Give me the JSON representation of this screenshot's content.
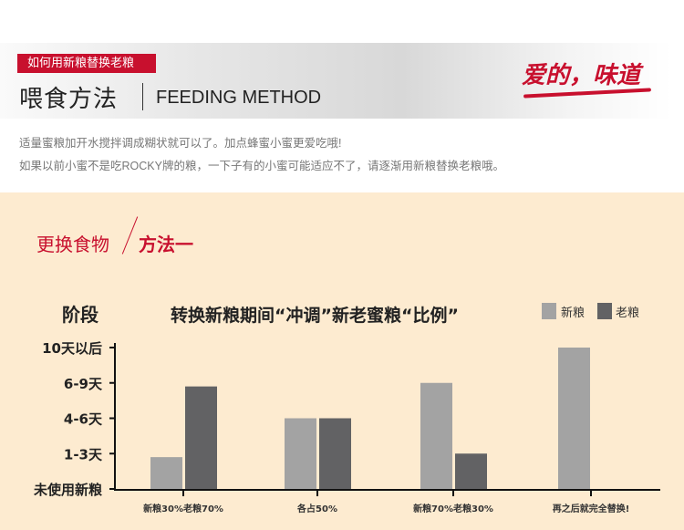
{
  "header": {
    "tag": "如何用新粮替换老粮",
    "title_cn": "喂食方法",
    "title_en": "FEEDING METHOD",
    "logo_text": "爱的，味道",
    "desc_lines": [
      "适量蜜粮加开水搅拌调成糊状就可以了。加点蜂蜜小蜜更爱吃哦!",
      "如果以前小蜜不是吃ROCKY牌的粮，一下子有的小蜜可能适应不了，请逐渐用新粮替换老粮哦。"
    ]
  },
  "section": {
    "title_a": "更换食物",
    "title_b": "方法一"
  },
  "chart_data": {
    "type": "bar",
    "title": "转换新粮期间“冲调”新老蜜粮“比例”",
    "ylabel": "阶段",
    "xlabel": "",
    "y_tick_labels": [
      "未使用新粮",
      "1-3天",
      "4-6天",
      "6-9天",
      "10天以后"
    ],
    "ylim": [
      0,
      4
    ],
    "categories": [
      "新粮30%老粮70%",
      "各占50%",
      "新粮70%老粮30%",
      "再之后就完全替换!"
    ],
    "series": [
      {
        "name": "新粮",
        "color": "#a3a3a3",
        "values": [
          0.9,
          2.0,
          3.0,
          4.0
        ]
      },
      {
        "name": "老粮",
        "color": "#626264",
        "values": [
          2.9,
          2.0,
          1.0,
          0
        ]
      }
    ],
    "legend": "top-right",
    "grid": false
  }
}
